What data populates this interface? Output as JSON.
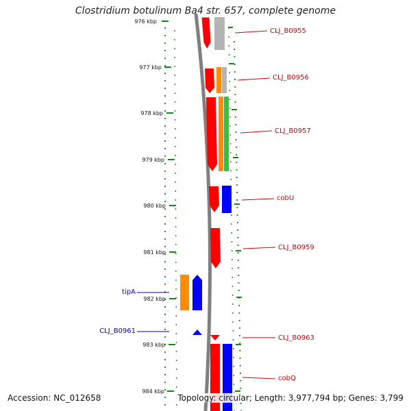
{
  "title": "Clostridium botulinum Ba4 str. 657, complete genome",
  "footer": {
    "accession": "Accession: NC_012658",
    "topology": "Topology: circular; Length: 3,977,794 bp; Genes: 3,799"
  },
  "colors": {
    "red": "#ff0000",
    "orange": "#ff8c00",
    "green": "#2fc62f",
    "blue": "#0000ff",
    "gray": "#b4b4b4",
    "label_red": "#cc0000",
    "label_blue": "#0000aa",
    "tick_green": "#118811",
    "backbone": "#808080"
  },
  "ticks": [
    "976 kbp",
    "977 kbp",
    "978 kbp",
    "979 kbp",
    "980 kbp",
    "981 kbp",
    "982 kbp",
    "983 kbp",
    "984 kbp"
  ],
  "labels_right": [
    "CLJ_B0955",
    "CLJ_B0956",
    "CLJ_B0957",
    "cobU",
    "CLJ_B0959",
    "CLJ_B0963",
    "cobQ"
  ],
  "labels_left": [
    "tipA",
    "CLJ_B0961"
  ]
}
